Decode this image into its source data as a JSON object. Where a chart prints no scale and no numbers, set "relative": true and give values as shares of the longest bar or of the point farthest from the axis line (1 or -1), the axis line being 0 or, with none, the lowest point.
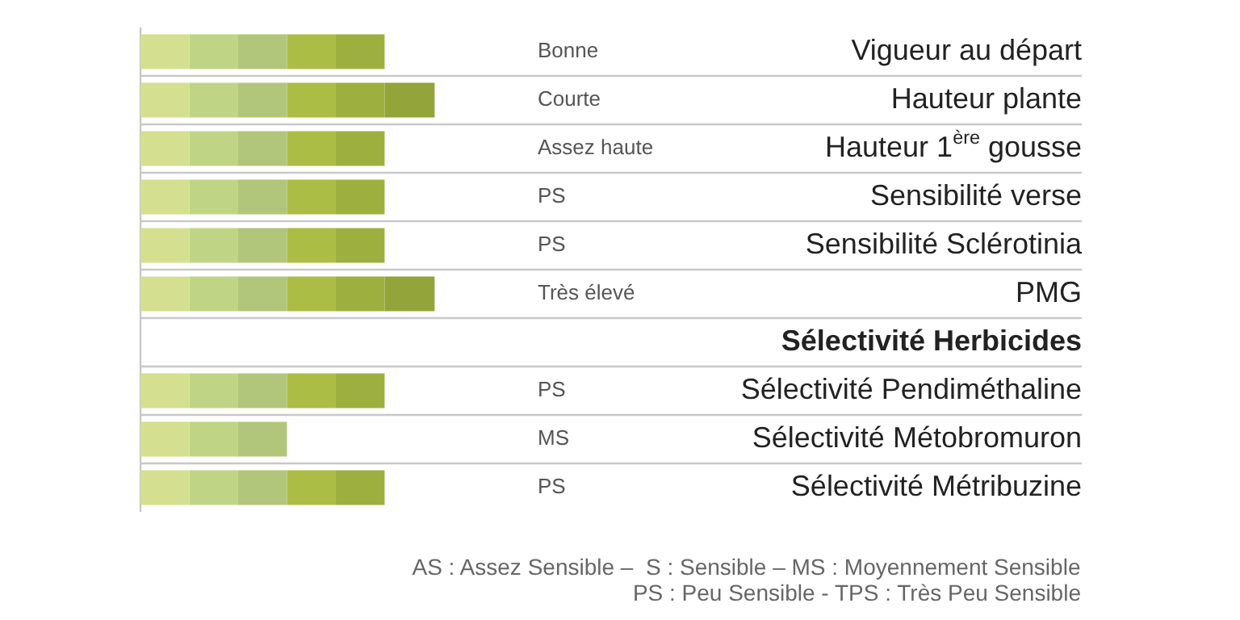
{
  "chart_data": {
    "type": "bar",
    "orientation": "horizontal",
    "stacked": true,
    "relative": true,
    "grid": "y",
    "categories": [
      "Vigueur au départ",
      "Hauteur plante",
      "Hauteur 1$^{ère}$ gousse",
      "Sensibilité verse",
      "Sensibilité Sclérotinia",
      "PMG",
      "Sélectivité Herbicides",
      "Sélectivité Pendiméthaline",
      "Sélectivité Métobromuron",
      "Sélectivité Métribuzine"
    ],
    "series": [
      {
        "color": "#d4e08f",
        "values": [
          0.166,
          0.166,
          0.166,
          0.166,
          0.166,
          0.166,
          null,
          0.166,
          0.166,
          0.166
        ]
      },
      {
        "color": "#bfd585",
        "values": [
          0.166,
          0.166,
          0.166,
          0.166,
          0.166,
          0.166,
          null,
          0.166,
          0.166,
          0.166
        ]
      },
      {
        "color": "#b1c67a",
        "values": [
          0.166,
          0.166,
          0.166,
          0.166,
          0.166,
          0.166,
          null,
          0.166,
          0.166,
          0.166
        ]
      },
      {
        "color": "#abbd45",
        "values": [
          0.166,
          0.166,
          0.166,
          0.166,
          0.166,
          0.166,
          null,
          0.166,
          null,
          0.166
        ]
      },
      {
        "color": "#9db03f",
        "values": [
          0.166,
          0.166,
          0.166,
          0.166,
          0.166,
          0.166,
          null,
          0.166,
          null,
          0.166
        ]
      },
      {
        "color": "#93a43a",
        "values": [
          null,
          0.17,
          null,
          null,
          null,
          0.17,
          null,
          null,
          null,
          null
        ]
      }
    ],
    "annotations": [
      "Bonne",
      "Courte",
      "Assez haute",
      "PS",
      "PS",
      "Très élevé",
      "PS",
      "MS",
      "PS",
      "AS : Assez Sensible –  S : Sensible – MS : Moyennement Sensible",
      "PS : Peu Sensible - TPS : Très Peu Sensible"
    ]
  }
}
